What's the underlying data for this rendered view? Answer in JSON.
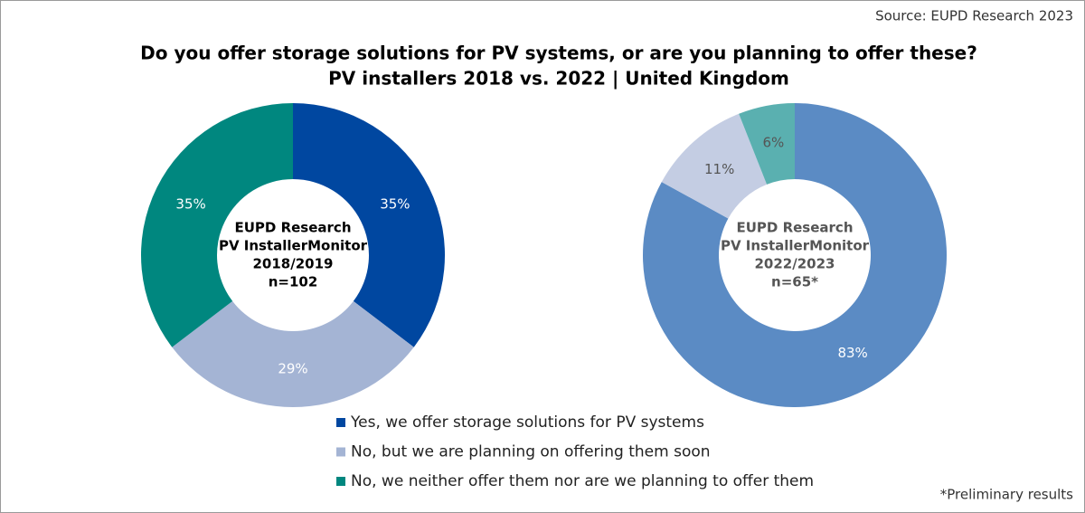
{
  "source": "Source: EUPD Research 2023",
  "title": "Do you offer storage solutions for PV systems, or are you planning to offer these?",
  "subtitle": "PV installers 2018 vs. 2022 | United Kingdom",
  "footnote": "*Preliminary results",
  "chart_data": [
    {
      "type": "donut",
      "center_label": [
        "EUPD Research",
        "PV InstallerMonitor",
        "2018/2019",
        "n=102"
      ],
      "categories": [
        "Yes, we offer storage solutions for PV systems",
        "No, but we are planning on offering them soon",
        "No, we neither offer them nor are we planning to offer them"
      ],
      "values": [
        35,
        29,
        35
      ],
      "value_labels": [
        "35%",
        "29%",
        "35%"
      ],
      "colors": [
        "#0047a0",
        "#a4b4d4",
        "#00877f"
      ],
      "legend": true
    },
    {
      "type": "donut",
      "center_label": [
        "EUPD Research",
        "PV InstallerMonitor",
        "2022/2023",
        "n=65*"
      ],
      "values": [
        83,
        11,
        6
      ],
      "value_labels": [
        "83%",
        "11%",
        "6%"
      ],
      "colors": [
        "#5b8bc4",
        "#c4cde3",
        "#5ab0b0"
      ]
    }
  ]
}
